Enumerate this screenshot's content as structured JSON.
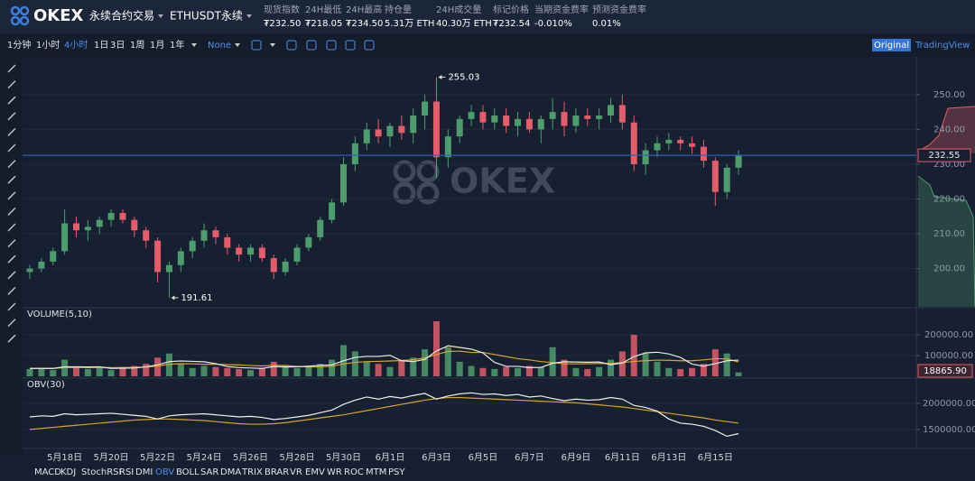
{
  "header": {
    "logo": "OKEX",
    "menu": "永续合约交易",
    "instrument": "ETHUSDT永续",
    "stats": [
      {
        "label": "现货指数",
        "value": "₮232.50"
      },
      {
        "label": "24H最低",
        "value": "₮218.05"
      },
      {
        "label": "24H最高",
        "value": "₮234.50"
      },
      {
        "label": "持仓量",
        "value": "5.31万 ETH"
      },
      {
        "label": "24H成交量",
        "value": "40.30万 ETH"
      },
      {
        "label": "标记价格",
        "value": "₮232.54"
      },
      {
        "label": "当期资金费率",
        "value": "-0.010%"
      },
      {
        "label": "预测资金费率",
        "value": "0.01%"
      }
    ]
  },
  "toolbar": {
    "intervals": [
      "1分钟",
      "1小时",
      "4小时",
      "1日",
      "3日",
      "1周",
      "1月",
      "1年"
    ],
    "selected": 2,
    "chart_style": "None",
    "views": [
      "Original",
      "TradingView"
    ],
    "active_view": 0
  },
  "indicators": {
    "items": [
      "MACD",
      "KDJ",
      "StochRSI",
      "RSI",
      "DMI",
      "OBV",
      "BOLL",
      "SAR",
      "DMA",
      "TRIX",
      "BRAR",
      "VR",
      "EMV",
      "WR",
      "ROC",
      "MTM",
      "PSY"
    ],
    "selected": 5
  },
  "chart_data": {
    "type": "candlestick",
    "watermark": "OKEX",
    "up_color": "#4e9d6e",
    "down_color": "#e35d6a",
    "open": [
      199,
      200,
      202,
      205,
      213,
      211,
      212,
      214,
      216,
      214,
      211,
      208,
      199,
      201,
      205,
      208,
      211,
      209,
      206,
      204,
      206,
      203,
      199,
      202,
      206,
      209,
      214,
      219,
      230,
      236,
      240,
      238,
      241,
      239,
      244,
      248,
      232,
      238,
      243,
      245,
      242,
      244,
      241,
      243,
      240,
      243,
      245,
      241,
      244,
      243,
      244,
      247,
      242,
      230,
      234,
      236,
      237,
      236,
      235,
      231,
      222,
      229
    ],
    "high": [
      201,
      203,
      206,
      217,
      215,
      214,
      215,
      217,
      217,
      215,
      212,
      209,
      202,
      206,
      209,
      213,
      212,
      210,
      207,
      207,
      207,
      204,
      203,
      207,
      210,
      215,
      220,
      232,
      238,
      242,
      243,
      242,
      244,
      246,
      250,
      255.03,
      240,
      244,
      247,
      247,
      246,
      246,
      245,
      245,
      244,
      249,
      248,
      246,
      246,
      246,
      249,
      250,
      244,
      236,
      238,
      239,
      238,
      238,
      237,
      232,
      230,
      234
    ],
    "low": [
      197,
      199,
      201,
      204,
      209,
      208,
      210,
      212,
      213,
      209,
      206,
      196,
      191.61,
      199,
      203,
      206,
      207,
      204,
      202,
      202,
      202,
      197,
      198,
      201,
      205,
      208,
      213,
      218,
      228,
      234,
      236,
      235,
      237,
      236,
      240,
      226,
      229,
      236,
      241,
      240,
      240,
      239,
      238,
      239,
      236,
      240,
      238,
      239,
      241,
      240,
      242,
      240,
      228,
      227,
      232,
      234,
      234,
      233,
      229,
      218,
      220,
      227
    ],
    "close": [
      200,
      202,
      205,
      213,
      211,
      212,
      214,
      216,
      214,
      211,
      208,
      199,
      201,
      205,
      208,
      211,
      209,
      206,
      204,
      206,
      203,
      199,
      202,
      206,
      209,
      214,
      219,
      230,
      236,
      240,
      238,
      241,
      239,
      244,
      248,
      232,
      238,
      243,
      245,
      242,
      244,
      241,
      243,
      240,
      243,
      245,
      241,
      244,
      243,
      244,
      247,
      242,
      230,
      234,
      236,
      237,
      236,
      235,
      231,
      222,
      229,
      232.55
    ],
    "ylim": [
      189,
      260.6
    ],
    "yticks": [
      {
        "value": 200,
        "label": "200.00"
      },
      {
        "value": 210,
        "label": "210.00"
      },
      {
        "value": 220,
        "label": "220.00"
      },
      {
        "value": 230,
        "label": "230.00"
      },
      {
        "value": 240,
        "label": "240.00"
      },
      {
        "value": 250,
        "label": "250.00"
      }
    ],
    "high_mark": 255.03,
    "low_mark": 191.61,
    "current_price": 232.55,
    "date_labels": [
      "5月18日",
      "5月20日",
      "5月22日",
      "5月24日",
      "5月26日",
      "5月28日",
      "5月30日",
      "6月1日",
      "6月3日",
      "6月5日",
      "6月7日",
      "6月9日",
      "6月11日",
      "6月13日",
      "6月15日"
    ],
    "volume": {
      "title": "VOLUME(5,10)",
      "values": [
        35000,
        40000,
        30000,
        80000,
        45000,
        35000,
        40000,
        30000,
        45000,
        50000,
        60000,
        90000,
        110000,
        60000,
        40000,
        50000,
        45000,
        40000,
        35000,
        30000,
        40000,
        70000,
        50000,
        40000,
        45000,
        60000,
        80000,
        150000,
        120000,
        70000,
        60000,
        45000,
        80000,
        90000,
        130000,
        265000,
        140000,
        70000,
        50000,
        40000,
        35000,
        45000,
        40000,
        50000,
        45000,
        140000,
        80000,
        40000,
        35000,
        45000,
        80000,
        120000,
        200000,
        110000,
        70000,
        40000,
        35000,
        40000,
        60000,
        130000,
        110000,
        18865.9
      ],
      "ma5": [
        38000,
        38000,
        38000,
        46000,
        46000,
        45000,
        46000,
        38000,
        39000,
        40000,
        46000,
        55000,
        71000,
        74000,
        72000,
        70000,
        61000,
        47000,
        42000,
        40000,
        38000,
        47000,
        45000,
        46000,
        49000,
        53000,
        55000,
        75000,
        91000,
        96000,
        96000,
        101000,
        75000,
        71000,
        81000,
        122000,
        147000,
        139000,
        131000,
        113000,
        67000,
        48000,
        48000,
        42000,
        43000,
        63000,
        70000,
        69000,
        68000,
        69000,
        56000,
        64000,
        95000,
        113000,
        116000,
        108000,
        91000,
        59000,
        49000,
        61000,
        75000,
        78000
      ],
      "ma10": [
        38000,
        38000,
        38000,
        42000,
        43000,
        42000,
        43000,
        42000,
        42000,
        43000,
        44000,
        50000,
        58000,
        61000,
        60000,
        58000,
        58000,
        56000,
        55000,
        52000,
        50000,
        53000,
        52000,
        48000,
        45000,
        46000,
        48000,
        60000,
        67000,
        71000,
        72000,
        74000,
        76000,
        80000,
        88000,
        105000,
        120000,
        121000,
        115000,
        115000,
        105000,
        95000,
        85000,
        79000,
        71000,
        66000,
        60000,
        60000,
        61000,
        62000,
        62000,
        66000,
        72000,
        75000,
        78000,
        77000,
        75000,
        75000,
        79000,
        85000,
        84000,
        69000
      ],
      "ma5_color": "#e8e8e8",
      "ma10_color": "#d9a522",
      "ylim": [
        0,
        326000
      ],
      "yticks": [
        {
          "value": 100000,
          "label": "100000.00"
        },
        {
          "value": 200000,
          "label": "200000.00"
        }
      ],
      "current": {
        "value": 18865.9,
        "label": "18865.90"
      }
    },
    "obv": {
      "title": "OBV(30)",
      "values": [
        1740000,
        1760000,
        1750000,
        1800000,
        1780000,
        1790000,
        1800000,
        1810000,
        1790000,
        1770000,
        1750000,
        1700000,
        1760000,
        1780000,
        1790000,
        1800000,
        1780000,
        1760000,
        1740000,
        1750000,
        1730000,
        1690000,
        1710000,
        1740000,
        1770000,
        1820000,
        1870000,
        1980000,
        2060000,
        2120000,
        2080000,
        2130000,
        2100000,
        2150000,
        2190000,
        2080000,
        2140000,
        2180000,
        2200000,
        2170000,
        2180000,
        2150000,
        2170000,
        2120000,
        2140000,
        2090000,
        2050000,
        2080000,
        2060000,
        2070000,
        2110000,
        2080000,
        1960000,
        1920000,
        1850000,
        1700000,
        1620000,
        1600000,
        1560000,
        1480000,
        1370000,
        1420000
      ],
      "ma": [
        1500000,
        1520000,
        1540000,
        1560000,
        1580000,
        1600000,
        1620000,
        1640000,
        1660000,
        1680000,
        1690000,
        1700000,
        1700000,
        1690000,
        1680000,
        1670000,
        1650000,
        1630000,
        1610000,
        1600000,
        1600000,
        1610000,
        1630000,
        1660000,
        1690000,
        1720000,
        1750000,
        1780000,
        1820000,
        1860000,
        1900000,
        1940000,
        1980000,
        2020000,
        2060000,
        2090000,
        2110000,
        2110000,
        2100000,
        2090000,
        2080000,
        2070000,
        2060000,
        2050000,
        2040000,
        2030000,
        2020000,
        2010000,
        1990000,
        1970000,
        1950000,
        1930000,
        1900000,
        1870000,
        1840000,
        1810000,
        1780000,
        1750000,
        1720000,
        1680000,
        1650000,
        1620000
      ],
      "color": "#f0f0f0",
      "ma_color": "#d9a522",
      "ylim": [
        1170000,
        2430000
      ],
      "yticks": [
        {
          "value": 1500000,
          "label": "1500000.00"
        },
        {
          "value": 2000000,
          "label": "2000000.00"
        }
      ]
    }
  }
}
